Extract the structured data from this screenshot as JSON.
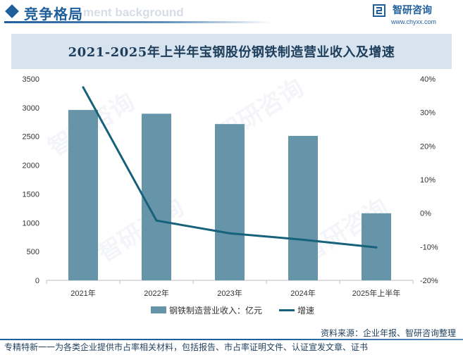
{
  "header": {
    "section_title": "竞争格局",
    "bg_text": "ment background",
    "brand_name": "智研咨询",
    "brand_url": "www.chyxx.com"
  },
  "chart_data": {
    "type": "bar",
    "title": "2021-2025年上半年宝钢股份钢铁制造营业收入及增速",
    "categories": [
      "2021年",
      "2022年",
      "2023年",
      "2024年",
      "2025年上半年"
    ],
    "series": [
      {
        "name": "钢铁制造营业收入：亿元",
        "type": "bar",
        "axis": "left",
        "color": "#6694a8",
        "values": [
          2960,
          2895,
          2715,
          2510,
          1165
        ]
      },
      {
        "name": "增速",
        "type": "line",
        "axis": "right",
        "color": "#16627a",
        "values": [
          37.5,
          -2.2,
          -6.0,
          -7.9,
          -10.2
        ]
      }
    ],
    "y_left": {
      "min": 0,
      "max": 3500,
      "step": 500,
      "ticks": [
        "0",
        "500",
        "1000",
        "1500",
        "2000",
        "2500",
        "3000",
        "3500"
      ]
    },
    "y_right": {
      "min": -20,
      "max": 40,
      "step": 10,
      "ticks": [
        "-20%",
        "-10%",
        "0%",
        "10%",
        "20%",
        "30%",
        "40%"
      ]
    },
    "grid": false,
    "legend_position": "bottom"
  },
  "legend": {
    "bar_label": "钢铁制造营业收入：亿元",
    "line_label": "增速"
  },
  "footer": {
    "source": "资料来源：企业年报、智研咨询整理",
    "tagline": "专精特新一一为各类企业提供市占率相关材料，包括报告、市占率证明文件、认证宣发文章、证书"
  },
  "watermark": "智研咨询"
}
